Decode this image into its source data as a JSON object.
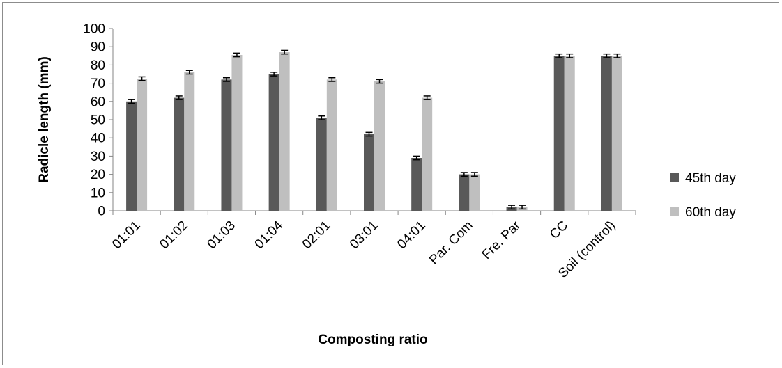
{
  "chart_data": {
    "type": "bar",
    "title": "",
    "xlabel": "Composting ratio",
    "ylabel": "Radicle length (mm)",
    "ylim": [
      0,
      100
    ],
    "yticks": [
      "0",
      "10",
      "20",
      "30",
      "40",
      "50",
      "60",
      "70",
      "80",
      "90",
      "100"
    ],
    "grid": false,
    "legend_position": "right",
    "categories": [
      "01:01",
      "01:02",
      "01:03",
      "01:04",
      "02:01",
      "03:01",
      "04:01",
      "Par. Com",
      "Fre. Par",
      "CC",
      "Soil (control)"
    ],
    "series": [
      {
        "name": "45th day",
        "color": "#595959",
        "values": [
          60,
          62,
          72,
          75,
          51,
          42,
          29,
          20,
          2,
          85,
          85
        ],
        "error": [
          1,
          1,
          1,
          1,
          1,
          1,
          1,
          1,
          1,
          1,
          1
        ]
      },
      {
        "name": "60th day",
        "color": "#bfbfbf",
        "values": [
          72.5,
          76,
          85.5,
          87,
          72,
          71,
          62,
          20,
          2,
          85,
          85
        ],
        "error": [
          1,
          1,
          1,
          1,
          1,
          1,
          1,
          1,
          1,
          1,
          1
        ]
      }
    ]
  }
}
